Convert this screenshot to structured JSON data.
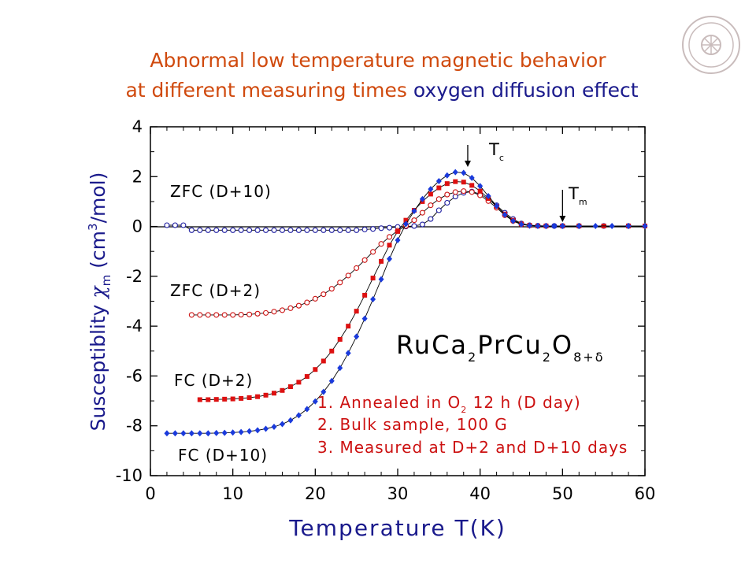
{
  "title": {
    "line1": "Abnormal low temperature magnetic behavior",
    "line2_part1": "at different measuring times ",
    "line2_part2": "oxygen diffusion effect"
  },
  "logo": {
    "description": "university-seal-watermark"
  },
  "chart_data": {
    "type": "scatter",
    "xlabel": "Temperature T(K)",
    "ylabel_prefix": "Susceptiblity ",
    "ylabel_symbol": "χ",
    "ylabel_sub": "m",
    "ylabel_unit": " (cm",
    "ylabel_sup": "3",
    "ylabel_unit_end": "/mol)",
    "xlim": [
      0,
      60
    ],
    "ylim": [
      -10,
      4
    ],
    "xticks": [
      0,
      10,
      20,
      30,
      40,
      50,
      60
    ],
    "yticks": [
      4,
      2,
      0,
      -2,
      -4,
      -6,
      -8,
      -10
    ],
    "grid": false,
    "annotations": {
      "tc": "T",
      "tc_sub": "c",
      "tm": "T",
      "tm_sub": "m",
      "zfc10": "ZFC (D+10)",
      "zfc2": "ZFC (D+2)",
      "fc2": "FC (D+2)",
      "fc10": "FC (D+10)",
      "compound": {
        "a": "RuCa",
        "b": "2",
        "c": "PrCu",
        "d": "2",
        "e": "O",
        "f": "8+δ"
      },
      "note1a": "1. Annealed in O",
      "note1b": "2",
      "note1c": " 12 h (D day)",
      "note2": "2. Bulk sample, 100 G",
      "note3": "3. Measured at D+2 and D+10 days"
    },
    "tc_x": 38.5,
    "tm_x": 50,
    "series": [
      {
        "key": "zfc10",
        "marker": "open-circle",
        "color": "#1a1aa0",
        "x": [
          2,
          3,
          4,
          5,
          6,
          7,
          8,
          9,
          10,
          11,
          12,
          13,
          14,
          15,
          16,
          17,
          18,
          19,
          20,
          21,
          22,
          23,
          24,
          25,
          26,
          27,
          28,
          29,
          30,
          31,
          32,
          33,
          34,
          35,
          36,
          37,
          38,
          39,
          40,
          41,
          42,
          43,
          44,
          45,
          46,
          47,
          48,
          49,
          50,
          52,
          55,
          58
        ],
        "y": [
          0.05,
          0.05,
          0.05,
          -0.15,
          -0.15,
          -0.15,
          -0.15,
          -0.15,
          -0.15,
          -0.15,
          -0.15,
          -0.15,
          -0.15,
          -0.15,
          -0.15,
          -0.15,
          -0.15,
          -0.15,
          -0.15,
          -0.15,
          -0.15,
          -0.15,
          -0.15,
          -0.15,
          -0.12,
          -0.1,
          -0.07,
          -0.05,
          -0.02,
          0.0,
          0.02,
          0.08,
          0.3,
          0.65,
          0.95,
          1.2,
          1.35,
          1.4,
          1.3,
          1.1,
          0.85,
          0.55,
          0.3,
          0.12,
          0.05,
          0.03,
          0.02,
          0.02,
          0.02,
          0.02,
          0.02,
          0.02
        ]
      },
      {
        "key": "zfc2",
        "marker": "open-circle",
        "color": "#cc1111",
        "x": [
          5,
          6,
          7,
          8,
          9,
          10,
          11,
          12,
          13,
          14,
          15,
          16,
          17,
          18,
          19,
          20,
          21,
          22,
          23,
          24,
          25,
          26,
          27,
          28,
          29,
          30,
          31,
          32,
          33,
          34,
          35,
          36,
          37,
          38,
          39,
          40,
          41,
          42,
          43,
          44,
          45
        ],
        "y": [
          -3.55,
          -3.55,
          -3.55,
          -3.55,
          -3.55,
          -3.55,
          -3.54,
          -3.53,
          -3.5,
          -3.47,
          -3.42,
          -3.36,
          -3.28,
          -3.18,
          -3.05,
          -2.9,
          -2.72,
          -2.5,
          -2.25,
          -1.97,
          -1.67,
          -1.35,
          -1.02,
          -0.7,
          -0.42,
          -0.17,
          0.02,
          0.25,
          0.55,
          0.85,
          1.1,
          1.28,
          1.38,
          1.42,
          1.38,
          1.25,
          1.02,
          0.75,
          0.45,
          0.22,
          0.08
        ]
      },
      {
        "key": "fc2",
        "marker": "filled-square",
        "color": "#dd1111",
        "x": [
          6,
          7,
          8,
          9,
          10,
          11,
          12,
          13,
          14,
          15,
          16,
          17,
          18,
          19,
          20,
          21,
          22,
          23,
          24,
          25,
          26,
          27,
          28,
          29,
          30,
          31,
          32,
          33,
          34,
          35,
          36,
          37,
          38,
          39,
          40,
          41,
          42,
          43,
          44,
          45,
          46,
          47,
          48,
          50,
          52,
          55,
          58,
          60
        ],
        "y": [
          -6.95,
          -6.95,
          -6.94,
          -6.93,
          -6.92,
          -6.9,
          -6.87,
          -6.83,
          -6.77,
          -6.69,
          -6.58,
          -6.43,
          -6.25,
          -6.02,
          -5.74,
          -5.4,
          -5.0,
          -4.53,
          -4.0,
          -3.4,
          -2.76,
          -2.07,
          -1.4,
          -0.75,
          -0.2,
          0.25,
          0.65,
          1.0,
          1.3,
          1.55,
          1.72,
          1.8,
          1.78,
          1.65,
          1.42,
          1.12,
          0.8,
          0.5,
          0.25,
          0.1,
          0.04,
          0.02,
          0.02,
          0.02,
          0.02,
          0.02,
          0.02,
          0.02
        ]
      },
      {
        "key": "fc10",
        "marker": "filled-diamond",
        "color": "#1a3adc",
        "x": [
          2,
          3,
          4,
          5,
          6,
          7,
          8,
          9,
          10,
          11,
          12,
          13,
          14,
          15,
          16,
          17,
          18,
          19,
          20,
          21,
          22,
          23,
          24,
          25,
          26,
          27,
          28,
          29,
          30,
          31,
          32,
          33,
          34,
          35,
          36,
          37,
          38,
          39,
          40,
          41,
          42,
          43,
          44,
          45,
          46,
          47,
          48,
          49,
          50,
          52,
          54,
          56,
          58,
          60
        ],
        "y": [
          -8.3,
          -8.3,
          -8.3,
          -8.3,
          -8.3,
          -8.3,
          -8.29,
          -8.28,
          -8.27,
          -8.25,
          -8.22,
          -8.18,
          -8.12,
          -8.04,
          -7.93,
          -7.78,
          -7.58,
          -7.33,
          -7.02,
          -6.64,
          -6.2,
          -5.68,
          -5.08,
          -4.42,
          -3.7,
          -2.92,
          -2.12,
          -1.3,
          -0.55,
          0.1,
          0.62,
          1.1,
          1.5,
          1.82,
          2.05,
          2.18,
          2.15,
          1.95,
          1.62,
          1.22,
          0.82,
          0.47,
          0.22,
          0.08,
          0.03,
          0.02,
          0.02,
          0.02,
          0.02,
          0.02,
          0.02,
          0.02,
          0.02,
          0.02
        ]
      }
    ]
  }
}
